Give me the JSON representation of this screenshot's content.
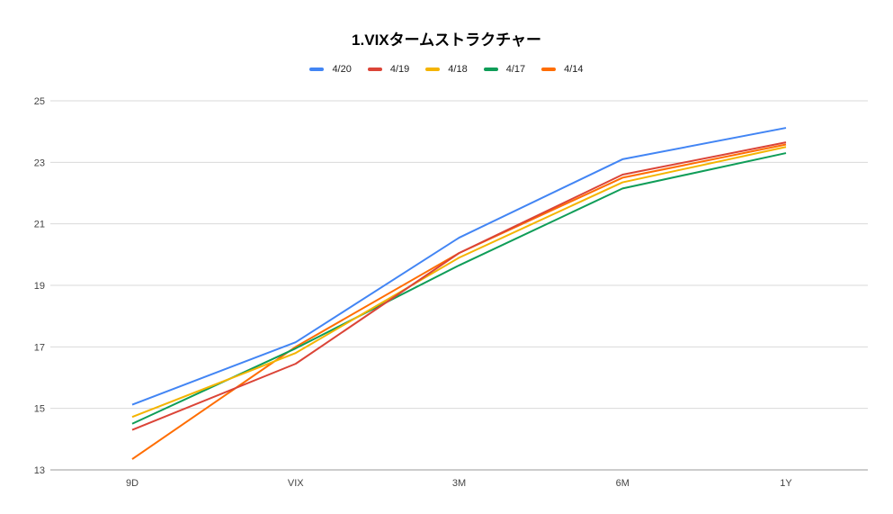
{
  "chart_data": {
    "type": "line",
    "title": "1.VIXタームストラクチャー",
    "xlabel": "",
    "ylabel": "",
    "categories": [
      "9D",
      "VIX",
      "3M",
      "6M",
      "1Y"
    ],
    "ylim": [
      13,
      25
    ],
    "yticks": [
      13,
      15,
      17,
      19,
      21,
      23,
      25
    ],
    "grid": true,
    "legend_position": "top",
    "series": [
      {
        "name": "4/20",
        "color": "#4285f4",
        "values": [
          15.12,
          17.15,
          20.55,
          23.1,
          24.12
        ]
      },
      {
        "name": "4/19",
        "color": "#db4437",
        "values": [
          14.3,
          16.45,
          20.05,
          22.6,
          23.65
        ]
      },
      {
        "name": "4/18",
        "color": "#f4b400",
        "values": [
          14.72,
          16.8,
          19.9,
          22.35,
          23.5
        ]
      },
      {
        "name": "4/17",
        "color": "#0f9d58",
        "values": [
          14.5,
          16.95,
          19.65,
          22.15,
          23.3
        ]
      },
      {
        "name": "4/14",
        "color": "#ff6d01",
        "values": [
          13.35,
          17.0,
          20.05,
          22.5,
          23.58
        ]
      }
    ]
  }
}
